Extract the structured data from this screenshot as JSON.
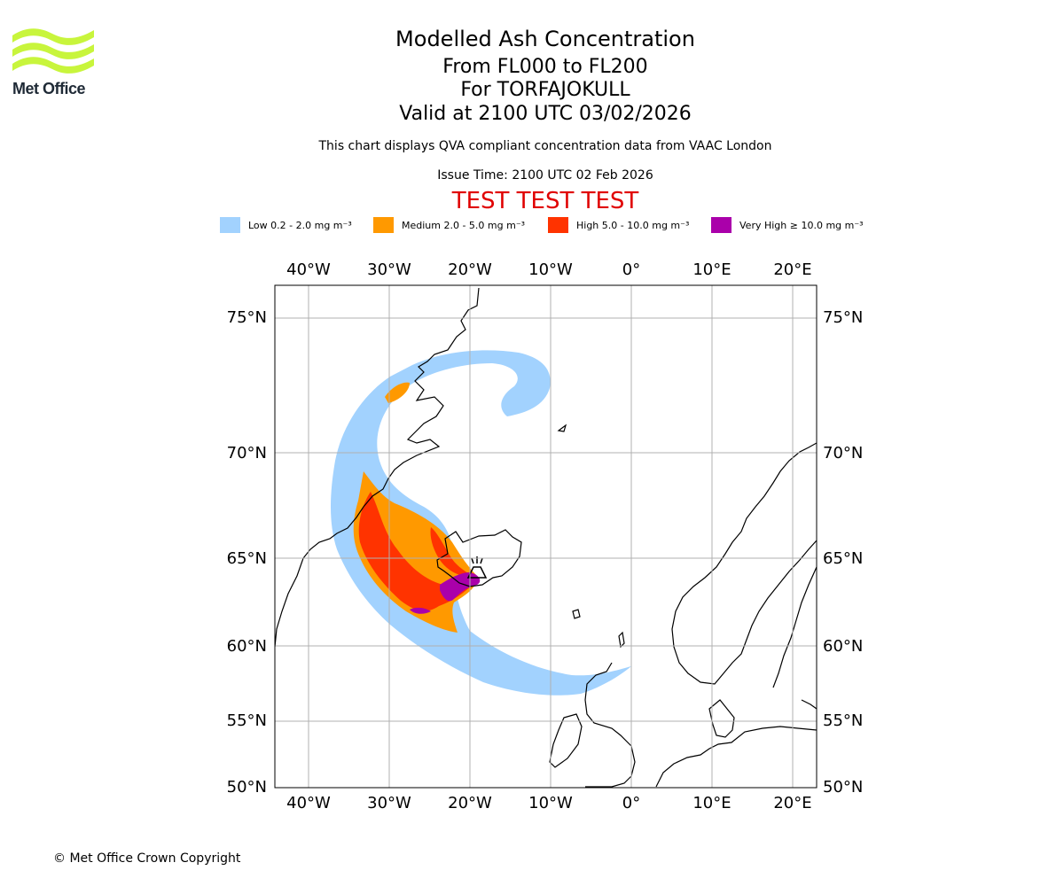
{
  "logo": {
    "brand": "Met Office",
    "color": "#c8f53c"
  },
  "titles": {
    "main": "Modelled Ash Concentration",
    "levels": "From FL000 to FL200",
    "volcano": "For TORFAJOKULL",
    "valid": "Valid at 2100 UTC 03/02/2026"
  },
  "notes": {
    "compliance": "This chart displays QVA compliant concentration data from VAAC London",
    "issue": "Issue Time: 2100 UTC 02 Feb 2026"
  },
  "test_banner": "TEST TEST TEST",
  "legend": [
    {
      "label": "Low 0.2 - 2.0 mg m⁻³",
      "color": "#a2d2fe"
    },
    {
      "label": "Medium 2.0 - 5.0 mg m⁻³",
      "color": "#ff9900"
    },
    {
      "label": "High 5.0 - 10.0 mg m⁻³",
      "color": "#ff3300"
    },
    {
      "label": "Very High  ≥  10.0 mg m⁻³",
      "color": "#aa00aa"
    }
  ],
  "axes": {
    "lon_labels": [
      "40°W",
      "30°W",
      "20°W",
      "10°W",
      "0°",
      "10°E",
      "20°E"
    ],
    "lat_labels": [
      "75°N",
      "70°N",
      "65°N",
      "60°N",
      "55°N",
      "50°N"
    ]
  },
  "copyright": "© Met Office Crown Copyright"
}
